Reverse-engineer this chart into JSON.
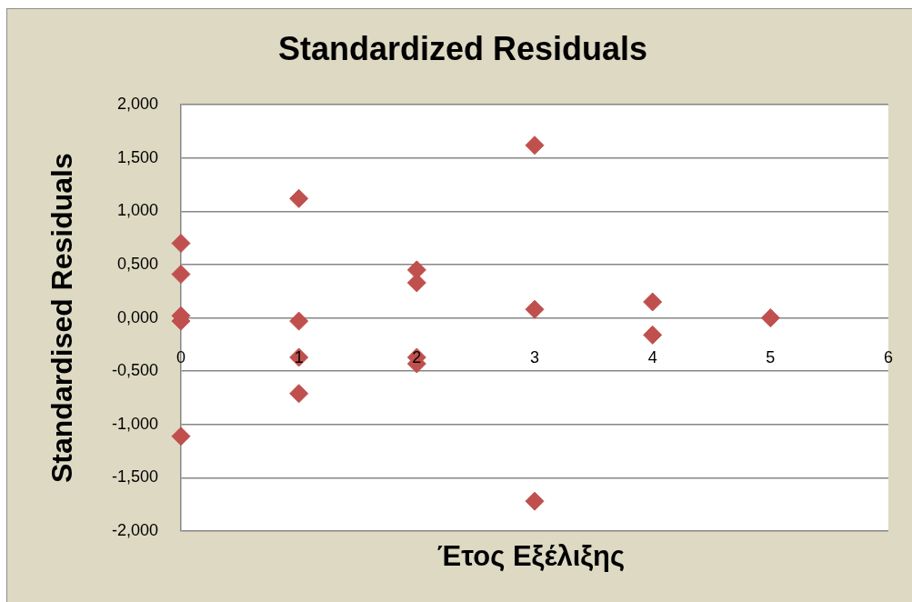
{
  "chart_data": {
    "type": "scatter",
    "title": "Standardized Residuals",
    "xlabel": "Έτος Εξέλιξης",
    "ylabel": "Standardised Residuals",
    "x": [
      0,
      0,
      0,
      0,
      0,
      1,
      1,
      1,
      1,
      2,
      2,
      2,
      2,
      3,
      3,
      3,
      4,
      4,
      5
    ],
    "values": [
      0.7,
      0.41,
      0.02,
      -0.03,
      -1.11,
      1.12,
      -0.03,
      -0.37,
      -0.71,
      0.45,
      0.33,
      -0.37,
      -0.43,
      1.62,
      0.08,
      -1.72,
      0.15,
      -0.16,
      0.0
    ],
    "color": "#c0504d",
    "marker": "diamond",
    "xlim": [
      0,
      6
    ],
    "xticks": [
      0,
      1,
      2,
      3,
      4,
      5,
      6
    ],
    "ylim": [
      -2,
      2
    ],
    "yticks": [
      {
        "value": -2,
        "label": "-2,000"
      },
      {
        "value": -1.5,
        "label": "-1,500"
      },
      {
        "value": -1,
        "label": "-1,000"
      },
      {
        "value": -0.5,
        "label": "-0,500"
      },
      {
        "value": 0,
        "label": "0,000"
      },
      {
        "value": 0.5,
        "label": "0,500"
      },
      {
        "value": 1,
        "label": "1,000"
      },
      {
        "value": 1.5,
        "label": "1,500"
      },
      {
        "value": 2,
        "label": "2,000"
      }
    ],
    "grid": "y"
  }
}
